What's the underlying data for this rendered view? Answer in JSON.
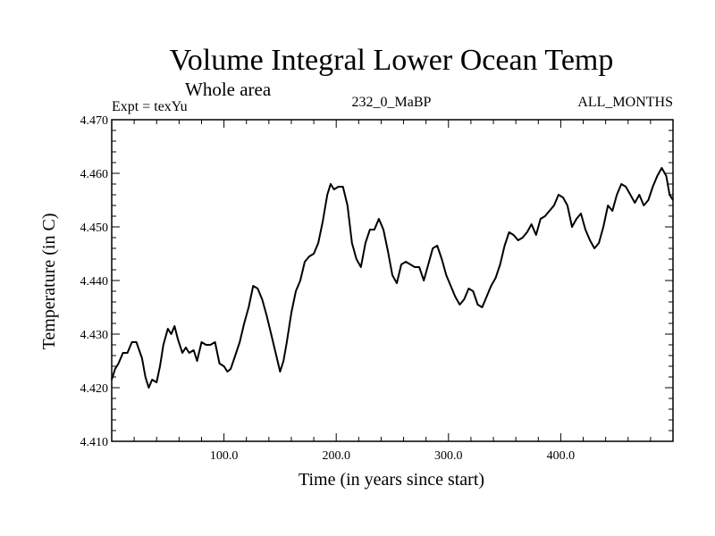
{
  "chart_data": {
    "type": "line",
    "title": "Volume Integral Lower Ocean Temp",
    "subtitle": "Whole area",
    "annotations": {
      "left": "Expt = texYu",
      "center": "232_0_MaBP",
      "right": "ALL_MONTHS"
    },
    "xlabel": "Time (in years since start)",
    "ylabel": "Temperature (in C)",
    "xlim": [
      0,
      500
    ],
    "ylim": [
      4.41,
      4.47
    ],
    "xticks": [
      100,
      200,
      300,
      400
    ],
    "xtick_labels": [
      "100.0",
      "200.0",
      "300.0",
      "400.0"
    ],
    "yticks": [
      4.41,
      4.42,
      4.43,
      4.44,
      4.45,
      4.46,
      4.47
    ],
    "ytick_labels": [
      "4.410",
      "4.420",
      "4.430",
      "4.440",
      "4.450",
      "4.460",
      "4.470"
    ],
    "grid": false,
    "series": [
      {
        "color": "#000000",
        "x": [
          0,
          3,
          6,
          10,
          14,
          18,
          22,
          27,
          30,
          33,
          36,
          40,
          43,
          46,
          50,
          53,
          56,
          59,
          63,
          66,
          69,
          73,
          76,
          80,
          84,
          88,
          92,
          96,
          100,
          103,
          106,
          110,
          114,
          118,
          122,
          126,
          130,
          134,
          138,
          142,
          146,
          150,
          153,
          156,
          160,
          164,
          168,
          172,
          176,
          180,
          184,
          188,
          192,
          195,
          198,
          202,
          206,
          210,
          214,
          218,
          222,
          226,
          230,
          234,
          238,
          242,
          246,
          250,
          254,
          258,
          262,
          266,
          270,
          274,
          278,
          282,
          286,
          290,
          294,
          298,
          302,
          306,
          310,
          314,
          318,
          322,
          326,
          330,
          334,
          338,
          342,
          346,
          350,
          354,
          358,
          362,
          366,
          370,
          374,
          378,
          382,
          386,
          390,
          394,
          398,
          402,
          406,
          410,
          414,
          418,
          422,
          426,
          430,
          434,
          438,
          442,
          446,
          450,
          454,
          458,
          462,
          466,
          470,
          474,
          478,
          482,
          486,
          490,
          494,
          497,
          500
        ],
        "y": [
          4.4215,
          4.4235,
          4.4245,
          4.4265,
          4.4265,
          4.4285,
          4.4285,
          4.4255,
          4.422,
          4.42,
          4.4215,
          4.421,
          4.424,
          4.428,
          4.431,
          4.43,
          4.4315,
          4.429,
          4.4265,
          4.4275,
          4.4265,
          4.427,
          4.425,
          4.4285,
          4.428,
          4.428,
          4.4285,
          4.4245,
          4.424,
          4.423,
          4.4235,
          4.426,
          4.4285,
          4.432,
          4.435,
          4.439,
          4.4385,
          4.4365,
          4.4335,
          4.43,
          4.4265,
          4.423,
          4.425,
          4.4285,
          4.434,
          4.438,
          4.44,
          4.4435,
          4.4445,
          4.445,
          4.447,
          4.451,
          4.456,
          4.458,
          4.457,
          4.4575,
          4.4575,
          4.454,
          4.447,
          4.444,
          4.4425,
          4.447,
          4.4495,
          4.4495,
          4.4515,
          4.4495,
          4.4455,
          4.441,
          4.4395,
          4.443,
          4.4435,
          4.443,
          4.4425,
          4.4425,
          4.44,
          4.443,
          4.446,
          4.4465,
          4.444,
          4.441,
          4.439,
          4.437,
          4.4355,
          4.4365,
          4.4385,
          4.438,
          4.4355,
          4.435,
          4.437,
          4.439,
          4.4405,
          4.443,
          4.4465,
          4.449,
          4.4485,
          4.4475,
          4.448,
          4.449,
          4.4505,
          4.4485,
          4.4515,
          4.452,
          4.453,
          4.454,
          4.456,
          4.4555,
          4.454,
          4.45,
          4.4515,
          4.4525,
          4.4495,
          4.4475,
          4.446,
          4.447,
          4.45,
          4.454,
          4.453,
          4.456,
          4.458,
          4.4575,
          4.456,
          4.4545,
          4.456,
          4.454,
          4.455,
          4.4575,
          4.4595,
          4.461,
          4.4595,
          4.456,
          4.455
        ]
      }
    ]
  }
}
